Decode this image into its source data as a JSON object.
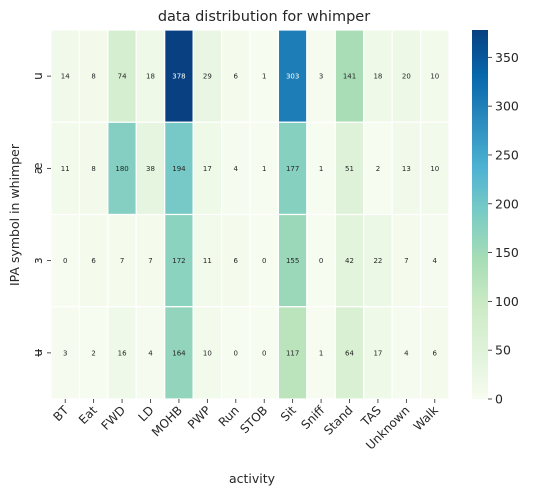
{
  "chart_data": {
    "type": "heatmap",
    "title": "data distribution for whimper",
    "xlabel": "activity",
    "ylabel": "IPA symbol in whimper",
    "x_categories": [
      "BT",
      "Eat",
      "FWD",
      "LD",
      "MOHB",
      "PWP",
      "Run",
      "STOB",
      "Sit",
      "Sniff",
      "Stand",
      "TAS",
      "Unknown",
      "Walk"
    ],
    "y_categories": [
      "u",
      "æ",
      "ɜ",
      "ʉ"
    ],
    "values": [
      [
        14,
        8,
        74,
        18,
        378,
        29,
        6,
        1,
        303,
        3,
        141,
        18,
        20,
        10
      ],
      [
        11,
        8,
        180,
        38,
        194,
        17,
        4,
        1,
        177,
        1,
        51,
        2,
        13,
        10
      ],
      [
        0,
        6,
        7,
        7,
        172,
        11,
        6,
        0,
        155,
        0,
        42,
        22,
        7,
        4
      ],
      [
        3,
        2,
        16,
        4,
        164,
        10,
        0,
        0,
        117,
        1,
        64,
        17,
        4,
        6
      ]
    ],
    "colorbar": {
      "colormap": "GnBu",
      "range": [
        0,
        378
      ],
      "ticks": [
        0,
        50,
        100,
        150,
        200,
        250,
        300,
        350
      ]
    },
    "annotations": true,
    "grid": false
  }
}
